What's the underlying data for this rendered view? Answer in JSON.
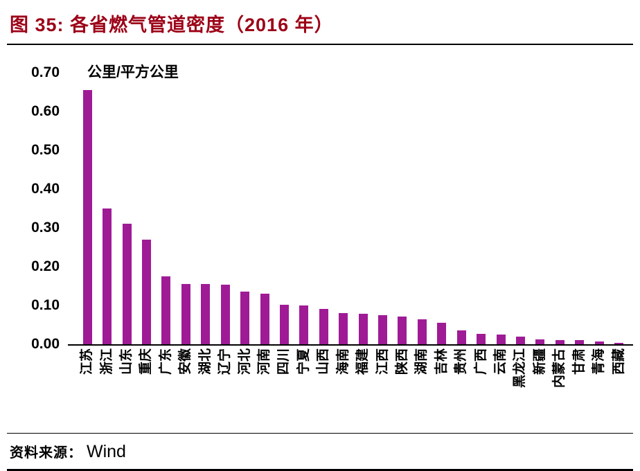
{
  "title": "图 35: 各省燃气管道密度（2016 年）",
  "source": {
    "prefix": "资料来源：",
    "name": "Wind"
  },
  "colors": {
    "accent": "#9f1b96",
    "title": "#9c0017",
    "axis": "#000000"
  },
  "chart_data": {
    "type": "bar",
    "title": "各省燃气管道密度（2016 年）",
    "xlabel": "",
    "ylabel": "公里/平方公里",
    "ylim": [
      0,
      0.7
    ],
    "y_ticks": [
      "0.70",
      "0.60",
      "0.50",
      "0.40",
      "0.30",
      "0.20",
      "0.10",
      "0.00"
    ],
    "grid": false,
    "legend": "none",
    "categories": [
      "江苏",
      "浙江",
      "山东",
      "重庆",
      "广东",
      "安徽",
      "湖北",
      "辽宁",
      "河北",
      "河南",
      "四川",
      "宁夏",
      "山西",
      "海南",
      "福建",
      "江西",
      "陕西",
      "湖南",
      "吉林",
      "贵州",
      "广西",
      "云南",
      "黑龙江",
      "新疆",
      "内蒙古",
      "甘肃",
      "青海",
      "西藏"
    ],
    "values": [
      0.655,
      0.35,
      0.31,
      0.27,
      0.175,
      0.155,
      0.155,
      0.153,
      0.135,
      0.13,
      0.102,
      0.1,
      0.092,
      0.08,
      0.078,
      0.075,
      0.072,
      0.065,
      0.055,
      0.035,
      0.027,
      0.025,
      0.02,
      0.012,
      0.01,
      0.01,
      0.008,
      0.003
    ]
  }
}
